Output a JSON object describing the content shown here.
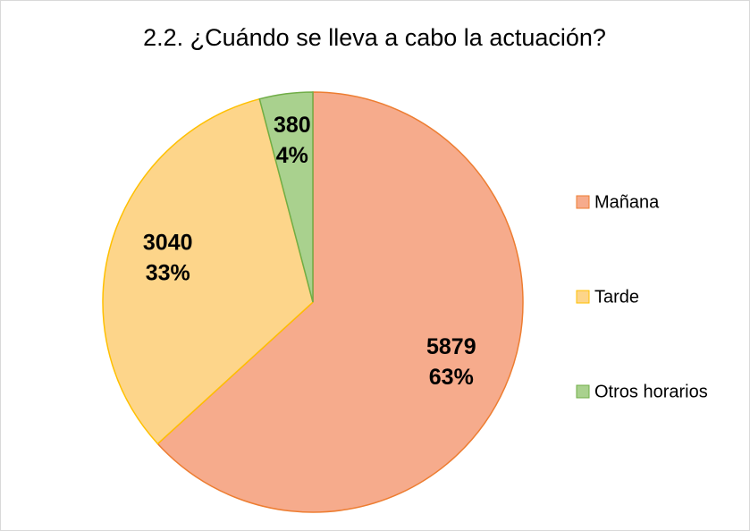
{
  "chart_data": {
    "type": "pie",
    "title": "2.2. ¿Cuándo se lleva a cabo la actuación?",
    "categories": [
      "Mañana",
      "Tarde",
      "Otros horarios"
    ],
    "values": [
      5879,
      3040,
      380
    ],
    "percent_labels": [
      "63%",
      "33%",
      "4%"
    ],
    "colors": [
      "#f6ab8c",
      "#fdd58a",
      "#a9d18e"
    ],
    "edge_colors": [
      "#ed7d31",
      "#ffc000",
      "#70ad47"
    ],
    "legend": "right"
  }
}
